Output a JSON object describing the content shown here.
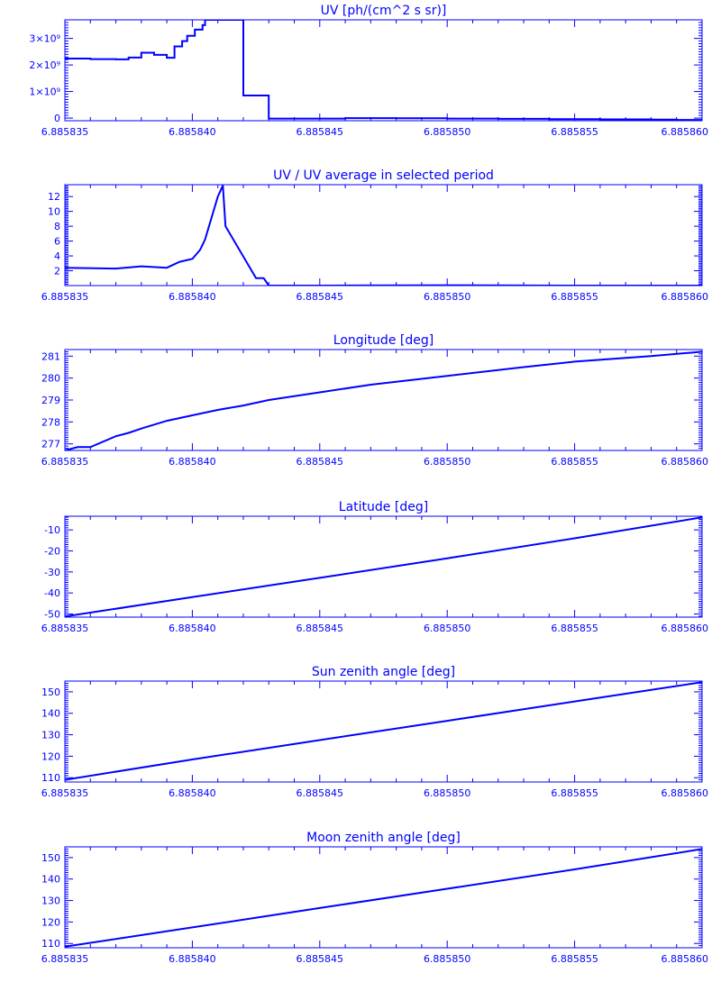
{
  "chart_data": [
    {
      "type": "line",
      "title": "UV [ph/(cm^2 s sr)]",
      "xlim": [
        6.885835,
        6.88586
      ],
      "x_ticks": [
        "6.885835",
        "6.885840",
        "6.885845",
        "6.885850",
        "6.885855",
        "6.885860"
      ],
      "ylim": [
        -100000000,
        3700000000
      ],
      "y_ticks": [
        "0",
        "1×10⁹",
        "2×10⁹",
        "3×10⁹"
      ],
      "y_tick_values": [
        0,
        1000000000,
        2000000000,
        3000000000
      ],
      "step": true,
      "series": [
        {
          "x": [
            6.885835,
            6.885836,
            6.885837,
            6.8858375,
            6.885838,
            6.8858385,
            6.885839,
            6.8858393,
            6.8858396,
            6.8858398,
            6.8858401,
            6.8858404,
            6.8858405,
            6.8858412,
            6.8858413,
            6.8858418,
            6.885842,
            6.8858425,
            6.885843,
            6.885844,
            6.885846,
            6.885848,
            6.88585,
            6.885852,
            6.885854,
            6.885856,
            6.885858,
            6.885859,
            6.88586
          ],
          "y": [
            2240000000,
            2220000000,
            2210000000,
            2280000000,
            2460000000,
            2380000000,
            2270000000,
            2700000000,
            2900000000,
            3100000000,
            3330000000,
            3500000000,
            3700000000,
            3700000000,
            3700000000,
            3700000000,
            850000000,
            850000000,
            -20000000,
            -20000000,
            0,
            -10000000,
            -20000000,
            -30000000,
            -40000000,
            -50000000,
            -60000000,
            -70000000,
            -60000000
          ]
        }
      ]
    },
    {
      "type": "line",
      "title": "UV / UV average in selected period",
      "xlim": [
        6.885835,
        6.88586
      ],
      "x_ticks": [
        "6.885835",
        "6.885840",
        "6.885845",
        "6.885850",
        "6.885855",
        "6.885860"
      ],
      "ylim": [
        0,
        13.6
      ],
      "y_ticks": [
        "2",
        "4",
        "6",
        "8",
        "10",
        "12"
      ],
      "y_tick_values": [
        2,
        4,
        6,
        8,
        10,
        12
      ],
      "series": [
        {
          "x": [
            6.885835,
            6.885837,
            6.885838,
            6.885839,
            6.8858395,
            6.88584,
            6.8858403,
            6.8858405,
            6.885841,
            6.8858412,
            6.8858413,
            6.8858425,
            6.8858428,
            6.885843,
            6.885845,
            6.88585,
            6.885855,
            6.88586
          ],
          "y": [
            2.4,
            2.3,
            2.6,
            2.4,
            3.2,
            3.6,
            4.8,
            6.2,
            12.0,
            13.5,
            8.0,
            1.0,
            1.0,
            0.0,
            0.0,
            0.05,
            0.0,
            0.0
          ]
        }
      ]
    },
    {
      "type": "line",
      "title": "Longitude [deg]",
      "xlim": [
        6.885835,
        6.88586
      ],
      "x_ticks": [
        "6.885835",
        "6.885840",
        "6.885845",
        "6.885850",
        "6.885855",
        "6.885860"
      ],
      "ylim": [
        276.7,
        281.3
      ],
      "y_ticks": [
        "277",
        "278",
        "279",
        "280",
        "281"
      ],
      "y_tick_values": [
        277,
        278,
        279,
        280,
        281
      ],
      "series": [
        {
          "x": [
            6.885835,
            6.8858355,
            6.885836,
            6.885837,
            6.8858375,
            6.885838,
            6.885839,
            6.88584,
            6.885841,
            6.885842,
            6.885843,
            6.885845,
            6.885847,
            6.88585,
            6.885853,
            6.885855,
            6.885858,
            6.88586
          ],
          "y": [
            276.7,
            276.85,
            276.85,
            277.35,
            277.5,
            277.7,
            278.05,
            278.3,
            278.55,
            278.75,
            279.0,
            279.35,
            279.7,
            280.1,
            280.5,
            280.75,
            281.0,
            281.2
          ]
        }
      ]
    },
    {
      "type": "line",
      "title": "Latitude [deg]",
      "xlim": [
        6.885835,
        6.88586
      ],
      "x_ticks": [
        "6.885835",
        "6.885840",
        "6.885845",
        "6.885850",
        "6.885855",
        "6.885860"
      ],
      "ylim": [
        -51.5,
        -3.5
      ],
      "y_ticks": [
        "-50",
        "-40",
        "-30",
        "-20",
        "-10"
      ],
      "y_tick_values": [
        -50,
        -40,
        -30,
        -20,
        -10
      ],
      "series": [
        {
          "x": [
            6.885835,
            6.88584,
            6.885845,
            6.88585,
            6.885855,
            6.88586
          ],
          "y": [
            -51.2,
            -42.0,
            -32.8,
            -23.5,
            -14.0,
            -4.0
          ]
        }
      ]
    },
    {
      "type": "line",
      "title": "Sun zenith angle [deg]",
      "xlim": [
        6.885835,
        6.88586
      ],
      "x_ticks": [
        "6.885835",
        "6.885840",
        "6.885845",
        "6.885850",
        "6.885855",
        "6.885860"
      ],
      "ylim": [
        108,
        155
      ],
      "y_ticks": [
        "110",
        "120",
        "130",
        "140",
        "150"
      ],
      "y_tick_values": [
        110,
        120,
        130,
        140,
        150
      ],
      "series": [
        {
          "x": [
            6.885835,
            6.88584,
            6.885845,
            6.88585,
            6.885855,
            6.88586
          ],
          "y": [
            109.0,
            118.5,
            127.5,
            136.5,
            145.5,
            154.5
          ]
        }
      ]
    },
    {
      "type": "line",
      "title": "Moon zenith angle [deg]",
      "xlim": [
        6.885835,
        6.88586
      ],
      "x_ticks": [
        "6.885835",
        "6.885840",
        "6.885845",
        "6.885850",
        "6.885855",
        "6.885860"
      ],
      "ylim": [
        108,
        155
      ],
      "y_ticks": [
        "110",
        "120",
        "130",
        "140",
        "150"
      ],
      "y_tick_values": [
        110,
        120,
        130,
        140,
        150
      ],
      "series": [
        {
          "x": [
            6.885835,
            6.88584,
            6.885845,
            6.88585,
            6.885855,
            6.88586
          ],
          "y": [
            108.5,
            117.5,
            126.5,
            135.5,
            144.5,
            154.0
          ]
        }
      ]
    }
  ],
  "colors": {
    "ink": "#0000ff",
    "background": "#ffffff"
  }
}
